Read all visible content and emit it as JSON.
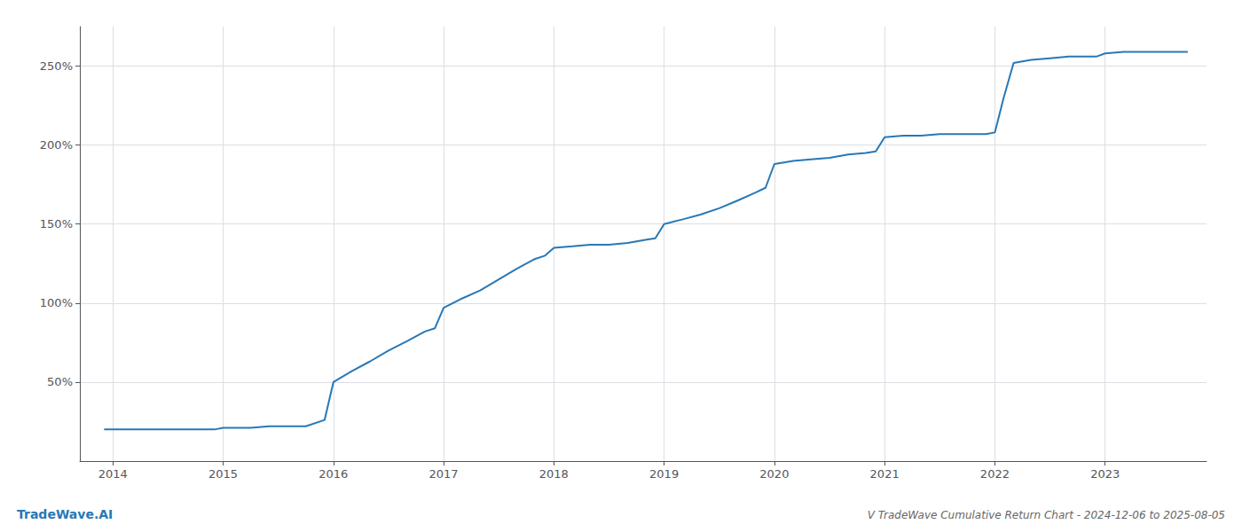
{
  "chart_data": {
    "type": "line",
    "title": "V TradeWave Cumulative Return Chart - 2024-12-06 to 2025-08-05",
    "annotations": [
      {
        "text": "TradeWave.AI",
        "color": "#2878b5"
      }
    ],
    "x": [
      2013.92,
      2014.0,
      2014.08,
      2014.17,
      2014.25,
      2014.33,
      2014.42,
      2014.5,
      2014.58,
      2014.67,
      2014.75,
      2014.83,
      2014.92,
      2015.0,
      2015.08,
      2015.17,
      2015.25,
      2015.42,
      2015.58,
      2015.75,
      2015.92,
      2016.0,
      2016.17,
      2016.33,
      2016.5,
      2016.67,
      2016.83,
      2016.92,
      2017.0,
      2017.17,
      2017.33,
      2017.5,
      2017.67,
      2017.83,
      2017.92,
      2018.0,
      2018.17,
      2018.33,
      2018.5,
      2018.67,
      2018.83,
      2018.92,
      2019.0,
      2019.17,
      2019.33,
      2019.5,
      2019.67,
      2019.83,
      2019.92,
      2020.0,
      2020.17,
      2020.33,
      2020.5,
      2020.67,
      2020.83,
      2020.92,
      2021.0,
      2021.17,
      2021.33,
      2021.5,
      2021.67,
      2021.83,
      2021.92,
      2022.0,
      2022.08,
      2022.17,
      2022.33,
      2022.5,
      2022.67,
      2022.83,
      2022.92,
      2023.0,
      2023.17,
      2023.5,
      2023.75
    ],
    "values": [
      20,
      20,
      20,
      20,
      20,
      20,
      20,
      20,
      20,
      20,
      20,
      20,
      20,
      21,
      21,
      21,
      21,
      22,
      22,
      22,
      26,
      50,
      57,
      63,
      70,
      76,
      82,
      84,
      97,
      103,
      108,
      115,
      122,
      128,
      130,
      135,
      136,
      137,
      137,
      138,
      140,
      141,
      150,
      153,
      156,
      160,
      165,
      170,
      173,
      188,
      190,
      191,
      192,
      194,
      195,
      196,
      205,
      206,
      206,
      207,
      207,
      207,
      207,
      208,
      230,
      252,
      254,
      255,
      256,
      256,
      256,
      258,
      259,
      259,
      259
    ],
    "color": "#2878b5",
    "xlim": [
      2013.7,
      2023.92
    ],
    "xticks": [
      2014,
      2015,
      2016,
      2017,
      2018,
      2019,
      2020,
      2021,
      2022,
      2023
    ],
    "ylim": [
      0,
      275
    ],
    "yticks": [
      {
        "value": 50,
        "label": "50%"
      },
      {
        "value": 100,
        "label": "100%"
      },
      {
        "value": 150,
        "label": "150%"
      },
      {
        "value": 200,
        "label": "200%"
      },
      {
        "value": 250,
        "label": "250%"
      }
    ],
    "grid": true
  }
}
